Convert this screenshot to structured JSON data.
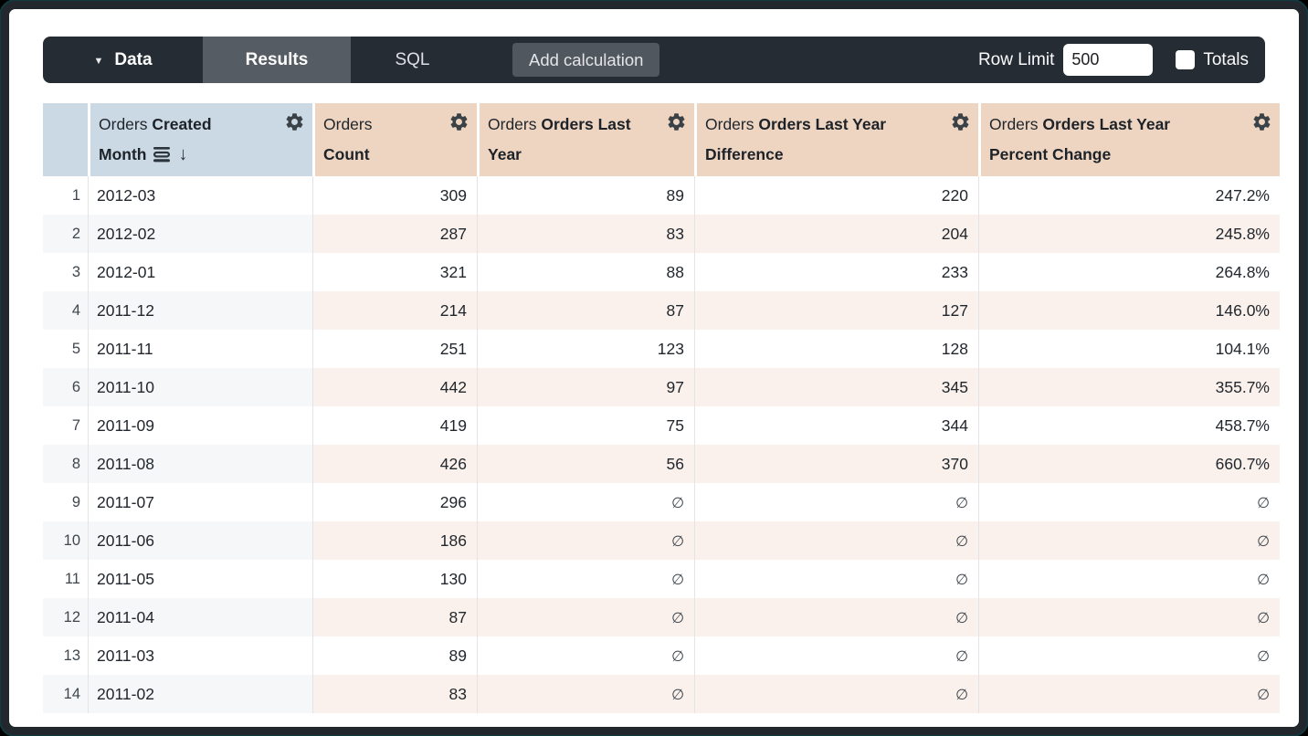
{
  "topbar": {
    "data_tab": "Data",
    "results_tab": "Results",
    "sql_tab": "SQL",
    "add_calculation": "Add calculation",
    "row_limit_label": "Row Limit",
    "row_limit_value": "500",
    "totals_label": "Totals",
    "totals_checked": false
  },
  "table": {
    "columns": [
      {
        "view": "Orders",
        "field_line1": "Created",
        "field_line2": "Month",
        "type": "dimension",
        "sorted": "desc",
        "gear_icon": "gear-icon",
        "sort_icons": [
          "subtotal-icon",
          "arrow-down-icon"
        ]
      },
      {
        "view": "Orders",
        "field_line1": "",
        "field_line2": "Count",
        "type": "measure",
        "gear_icon": "gear-icon"
      },
      {
        "view": "Orders",
        "field_line1": "Orders Last",
        "field_line2": "Year",
        "type": "measure",
        "gear_icon": "gear-icon"
      },
      {
        "view": "Orders",
        "field_line1": "Orders Last Year",
        "field_line2": "Difference",
        "type": "measure",
        "gear_icon": "gear-icon"
      },
      {
        "view": "Orders",
        "field_line1": "Orders Last Year",
        "field_line2": "Percent Change",
        "type": "measure",
        "gear_icon": "gear-icon"
      }
    ],
    "null_symbol": "∅",
    "rows": [
      [
        "2012-03",
        "309",
        "89",
        "220",
        "247.2%"
      ],
      [
        "2012-02",
        "287",
        "83",
        "204",
        "245.8%"
      ],
      [
        "2012-01",
        "321",
        "88",
        "233",
        "264.8%"
      ],
      [
        "2011-12",
        "214",
        "87",
        "127",
        "146.0%"
      ],
      [
        "2011-11",
        "251",
        "123",
        "128",
        "104.1%"
      ],
      [
        "2011-10",
        "442",
        "97",
        "345",
        "355.7%"
      ],
      [
        "2011-09",
        "419",
        "75",
        "344",
        "458.7%"
      ],
      [
        "2011-08",
        "426",
        "56",
        "370",
        "660.7%"
      ],
      [
        "2011-07",
        "296",
        "∅",
        "∅",
        "∅"
      ],
      [
        "2011-06",
        "186",
        "∅",
        "∅",
        "∅"
      ],
      [
        "2011-05",
        "130",
        "∅",
        "∅",
        "∅"
      ],
      [
        "2011-04",
        "87",
        "∅",
        "∅",
        "∅"
      ],
      [
        "2011-03",
        "89",
        "∅",
        "∅",
        "∅"
      ],
      [
        "2011-02",
        "83",
        "∅",
        "∅",
        "∅"
      ]
    ]
  },
  "colors": {
    "topbar": "#262c33",
    "tab_active": "#565c63",
    "button": "#51575e",
    "header_dimension": "#cbd9e4",
    "header_measure": "#eed5c2",
    "row_alt_dimension": "#f5f7f9",
    "row_alt_measure": "#faf1ec",
    "frame_accent": "#1daab8"
  }
}
